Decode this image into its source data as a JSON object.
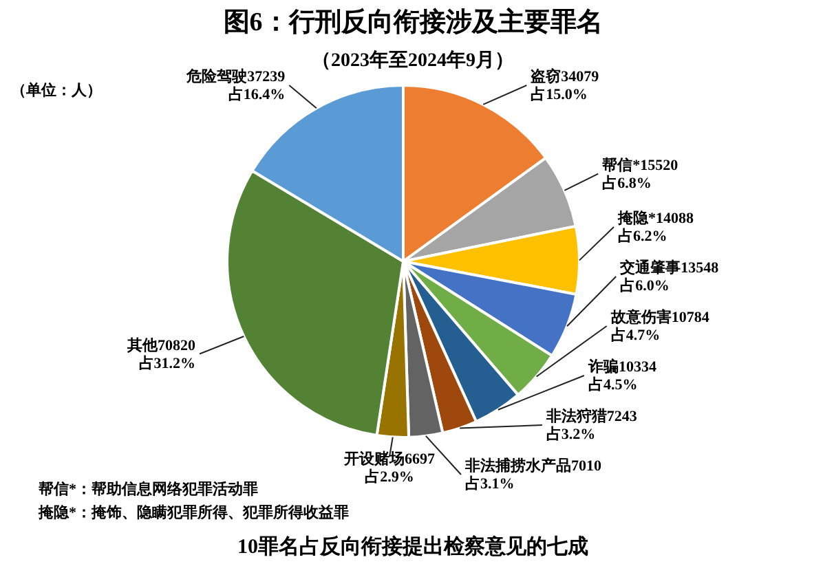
{
  "chart_data": {
    "type": "pie",
    "title": "图6：行刑反向衔接涉及主要罪名",
    "subtitle": "（2023年至2024年9月）",
    "categories": [
      "盗窃34079",
      "帮信*15520",
      "掩隐*14088",
      "交通肇事13548",
      "故意伤害10784",
      "诈骗10334",
      "非法狩猎7243",
      "非法捕捞水产品7010",
      "开设赌场6697",
      "其他70820",
      "危险驾驶37239"
    ],
    "values": [
      15.0,
      6.8,
      6.2,
      6.0,
      4.7,
      4.5,
      3.2,
      3.1,
      2.9,
      31.2,
      16.4
    ],
    "colors": [
      "#ed7d31",
      "#a5a5a5",
      "#ffc000",
      "#4472c4",
      "#70ad47",
      "#255e91",
      "#9e480e",
      "#636363",
      "#997300",
      "#548235",
      "#5b9bd5"
    ],
    "value_labels": [
      "占15.0%",
      "占6.8%",
      "占6.2%",
      "占6.0%",
      "占4.7%",
      "占4.5%",
      "占3.2%",
      "占3.1%",
      "占2.9%",
      "占31.2%",
      "占16.4%"
    ],
    "annotations": [
      "（单位：人）",
      "帮信*：帮助信息网络犯罪活动罪",
      "掩隐*：掩饰、隐瞒犯罪所得、犯罪所得收益罪",
      "10罪名占反向衔接提出检察意见的七成"
    ]
  }
}
